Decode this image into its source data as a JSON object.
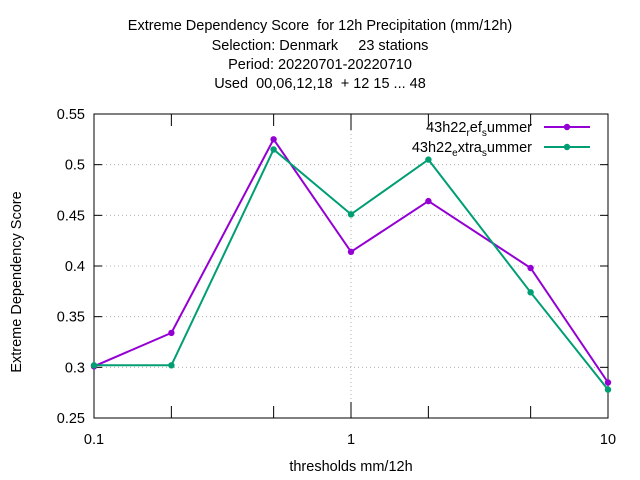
{
  "chart_data": {
    "type": "line",
    "title_lines": [
      "Extreme Dependency Score  for 12h Precipitation (mm/12h)",
      "Selection: Denmark     23 stations",
      "Period: 20220701-20220710",
      "Used  00,06,12,18  + 12 15 ... 48"
    ],
    "xlabel": "thresholds mm/12h",
    "ylabel": "Extreme Dependency Score",
    "x_scale": "log",
    "xlim": [
      0.1,
      10
    ],
    "ylim": [
      0.25,
      0.55
    ],
    "x_ticks": [
      0.1,
      0.2,
      0.5,
      1,
      2,
      5,
      10
    ],
    "x_tick_labels": [
      "0.1",
      "",
      "",
      "1",
      "",
      "",
      "10"
    ],
    "y_ticks": [
      0.25,
      0.3,
      0.35,
      0.4,
      0.45,
      0.5,
      0.55
    ],
    "y_tick_labels": [
      "0.25",
      "0.3",
      "0.35",
      "0.4",
      "0.45",
      "0.5",
      "0.55"
    ],
    "grid": true,
    "legend_position": "top-right",
    "x": [
      0.1,
      0.2,
      0.5,
      1,
      2,
      5,
      10
    ],
    "series": [
      {
        "name": "43h22_ref_summer",
        "legend_parts": [
          "43h22",
          "r",
          "ef",
          "s",
          "ummer"
        ],
        "color": "#9400d3",
        "values": [
          0.301,
          0.334,
          0.525,
          0.414,
          0.464,
          0.398,
          0.285
        ]
      },
      {
        "name": "43h22_extra_summer",
        "legend_parts": [
          "43h22",
          "e",
          "xtra",
          "s",
          "ummer"
        ],
        "color": "#009e73",
        "values": [
          0.302,
          0.302,
          0.515,
          0.451,
          0.505,
          0.374,
          0.278
        ]
      }
    ]
  }
}
